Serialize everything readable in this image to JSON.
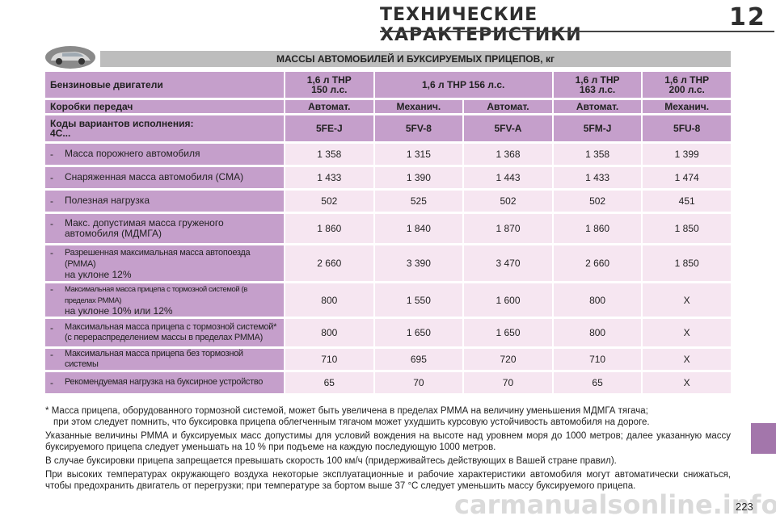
{
  "header": {
    "title": "ТЕХНИЧЕСКИЕ ХАРАКТЕРИСТИКИ",
    "chapter": "12"
  },
  "table_title": "МАССЫ АВТОМОБИЛЕЙ И БУКСИРУЕМЫХ ПРИЦЕПОВ, кг",
  "engines": {
    "label": "Бензиновые двигатели",
    "col1": "1,6 л THP\n150 л.с.",
    "col23": "1,6 л THP 156 л.с.",
    "col4": "1,6 л THP\n163 л.с.",
    "col5": "1,6 л THP\n200 л.с."
  },
  "gearbox": {
    "label": "Коробки передач",
    "values": [
      "Автомат.",
      "Механич.",
      "Автомат.",
      "Автомат.",
      "Механич."
    ]
  },
  "variants": {
    "label": "Коды вариантов исполнения:\n4С...",
    "values": [
      "5FE-J",
      "5FV-8",
      "5FV-A",
      "5FM-J",
      "5FU-8"
    ]
  },
  "rows": [
    {
      "label": "Масса порожнего автомобиля",
      "values": [
        "1 358",
        "1 315",
        "1 368",
        "1 358",
        "1 399"
      ]
    },
    {
      "label": "Снаряженная масса автомобиля (СМА)",
      "values": [
        "1 433",
        "1 390",
        "1 443",
        "1 433",
        "1 474"
      ]
    },
    {
      "label": "Полезная нагрузка",
      "values": [
        "502",
        "525",
        "502",
        "502",
        "451"
      ]
    },
    {
      "label": "Макс. допустимая масса груженого\nавтомобиля (МДМГА)",
      "values": [
        "1 860",
        "1 840",
        "1 870",
        "1 860",
        "1 850"
      ]
    },
    {
      "label": "Разрешенная максимальная масса автопоезда (РММА)",
      "sub": "на уклоне 12%",
      "values": [
        "2 660",
        "3 390",
        "3 470",
        "2 660",
        "1 850"
      ]
    },
    {
      "label": "Максимальная масса прицепа с тормозной системой (в пределах РММА)",
      "sub": "на уклоне 10% или 12%",
      "values": [
        "800",
        "1 550",
        "1 600",
        "800",
        "X"
      ]
    },
    {
      "label": "Максимальная масса прицепа с тормозной системой*\n(с перераспределением массы в пределах РММА)",
      "values": [
        "800",
        "1 650",
        "1 650",
        "800",
        "X"
      ]
    },
    {
      "label": "Максимальная масса прицепа без тормозной системы",
      "values": [
        "710",
        "695",
        "720",
        "710",
        "X"
      ]
    },
    {
      "label": "Рекомендуемая нагрузка на буксирное устройство",
      "values": [
        "65",
        "70",
        "70",
        "65",
        "X"
      ]
    }
  ],
  "notes": {
    "footnote_star": "*",
    "footnote_line1": "Масса прицепа, оборудованного тормозной системой, может быть увеличена в пределах РММА на величину уменьшения МДМГА тягача;",
    "footnote_line2": "при этом следует помнить, что буксировка прицепа облегченным тягачом может ухудшить курсовую устойчивость автомобиля на дороге.",
    "p1": "Указанные величины РММА и буксируемых масс допустимы для условий вождения на высоте над уровнем моря до 1000 метров; далее указанную массу буксируемого прицепа следует уменьшать на 10 % при подъеме на каждую последующую 1000 метров.",
    "p2": "В случае буксировки прицепа запрещается превышать скорость 100 км/ч (придерживайтесь действующих в Вашей стране правил).",
    "p3": "При высоких температурах окружающего воздуха некоторые эксплуатационные и рабочие характеристики автомобиля могут автоматически снижаться, чтобы предохранить двигатель от перегрузки; при температуре за бортом выше 37 °С следует уменьшить массу буксируемого прицепа."
  },
  "page_number": "223",
  "watermark": "carmanualsonline.info",
  "colors": {
    "header_purple": "#c59fcb",
    "cell_pink": "#f6e6f1",
    "title_grey": "#bdbdbd",
    "tab_purple": "#a376ab"
  }
}
